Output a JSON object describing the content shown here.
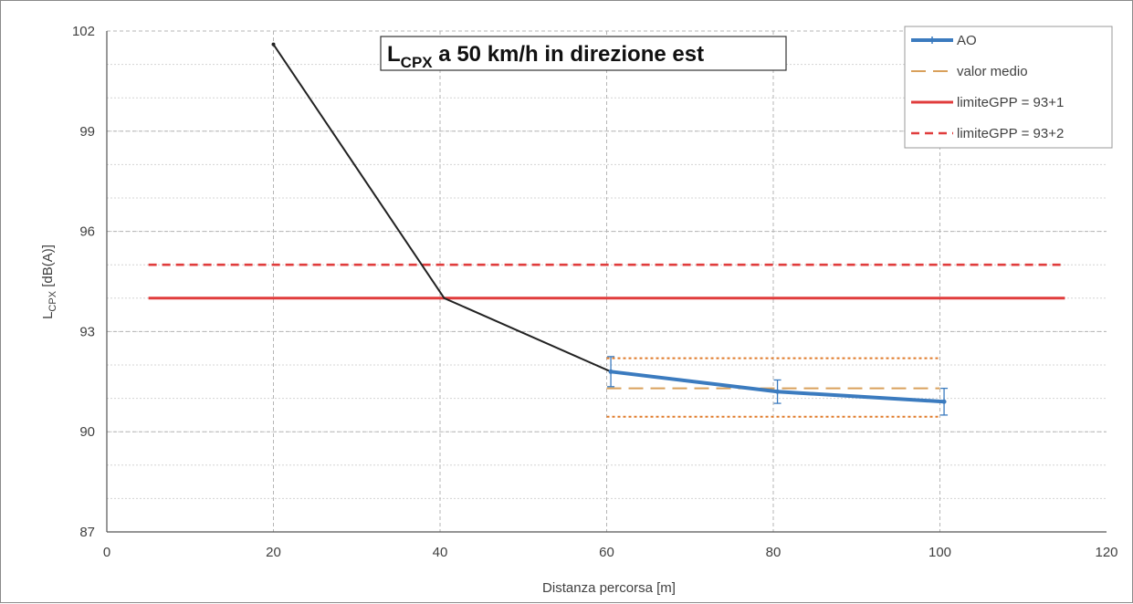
{
  "chart_data": {
    "type": "line",
    "title": {
      "main": "L",
      "sub": "CPX",
      "rest": " a 50 km/h in direzione est"
    },
    "xlabel": "Distanza percorsa  [m]",
    "ylabel": {
      "main": "L",
      "sub": "CPX",
      "rest": "  [dB(A)]"
    },
    "xlim": [
      0,
      120
    ],
    "ylim": [
      87,
      102
    ],
    "xticks": [
      "0",
      "20",
      "40",
      "60",
      "80",
      "100",
      "120"
    ],
    "yticks": [
      "87",
      "90",
      "93",
      "96",
      "99",
      "102"
    ],
    "grid": true,
    "legend_position": "top-right",
    "legend": [
      {
        "label": "AO",
        "color": "#3b7bbf",
        "style": "solid-marker"
      },
      {
        "label": "valor medio",
        "color": "#d9a05b",
        "style": "long-dash"
      },
      {
        "label": "limiteGPP = 93+1",
        "color": "#e03c3c",
        "style": "solid"
      },
      {
        "label": "limiteGPP = 93+2",
        "color": "#e03c3c",
        "style": "dashed"
      }
    ],
    "series": [
      {
        "name": "",
        "color": "#222222",
        "x": [
          20,
          40.5,
          60.5
        ],
        "y": [
          101.6,
          94.0,
          91.8
        ]
      },
      {
        "name": "AO",
        "color": "#3b7bbf",
        "x": [
          60.5,
          80.5,
          100.5
        ],
        "y": [
          91.8,
          91.2,
          90.9
        ],
        "yerr": [
          0.45,
          0.35,
          0.4
        ]
      }
    ],
    "reference_lines": [
      {
        "name": "limiteGPP = 93+1",
        "y": 94,
        "x_from": 5,
        "x_to": 115,
        "color": "#e03c3c",
        "style": "solid"
      },
      {
        "name": "limiteGPP = 93+2",
        "y": 95,
        "x_from": 5,
        "x_to": 115,
        "color": "#e03c3c",
        "style": "dashed"
      },
      {
        "name": "valor medio",
        "y": 91.3,
        "x_from": 60,
        "x_to": 100,
        "color": "#d9a05b",
        "style": "long-dash"
      },
      {
        "name": "",
        "y": 92.2,
        "x_from": 60,
        "x_to": 100,
        "color": "#e07b2a",
        "style": "dotted"
      },
      {
        "name": "",
        "y": 90.45,
        "x_from": 60,
        "x_to": 100,
        "color": "#e07b2a",
        "style": "dotted"
      }
    ]
  }
}
